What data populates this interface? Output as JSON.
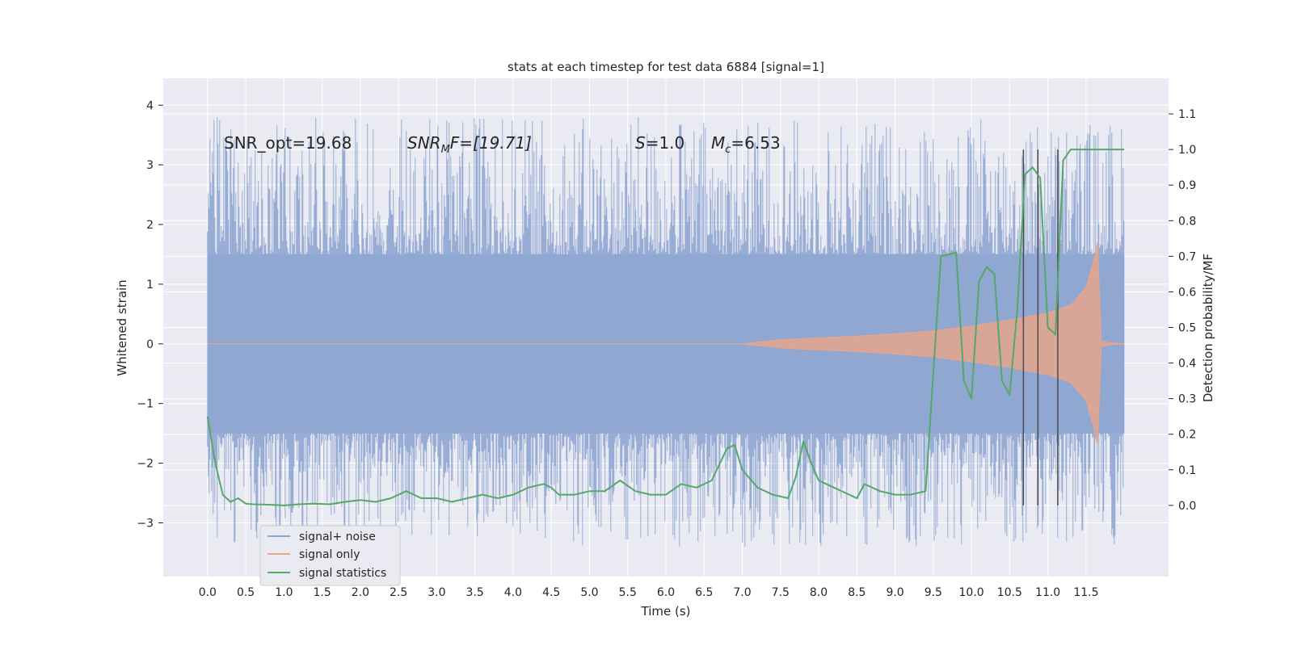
{
  "chart_data": {
    "type": "line",
    "title": "stats at each timestep for test data 6884 [signal=1]",
    "xlabel": "Time (s)",
    "ylabel": "Whitened strain",
    "ylabel_right": "Detection probability/MF",
    "xlim": [
      -0.58,
      12.58
    ],
    "ylim": [
      -3.9,
      4.45
    ],
    "ylim_right": [
      -0.2,
      1.2
    ],
    "x_ticks": [
      "0.0",
      "0.5",
      "1.0",
      "1.5",
      "2.0",
      "2.5",
      "3.0",
      "3.5",
      "4.0",
      "4.5",
      "5.0",
      "5.5",
      "6.0",
      "6.5",
      "7.0",
      "7.5",
      "8.0",
      "8.5",
      "9.0",
      "9.5",
      "10.0",
      "10.5",
      "11.0",
      "11.5"
    ],
    "y_ticks": [
      "−3",
      "−2",
      "−1",
      "0",
      "1",
      "2",
      "3",
      "4"
    ],
    "y_ticks_right": [
      "0.0",
      "0.1",
      "0.2",
      "0.3",
      "0.4",
      "0.5",
      "0.6",
      "0.7",
      "0.8",
      "0.9",
      "1.0",
      "1.1"
    ],
    "annotations": {
      "snr_opt": "SNR_opt=19.68",
      "snr_mf_main": "SNR",
      "snr_mf_sub": "M",
      "snr_mf_rest": "F=[19.71]",
      "s_main": "S",
      "s_rest": "=1.0",
      "mc_main": "M",
      "mc_sub": "c",
      "mc_rest": "=6.53"
    },
    "legend": {
      "position": "lower-left",
      "entries": [
        {
          "label": "signal+ noise",
          "color": "#8fa6d1"
        },
        {
          "label": "signal only",
          "color": "#e6a58c"
        },
        {
          "label": "signal statistics",
          "color": "#55a868"
        }
      ]
    },
    "series": [
      {
        "name": "signal+ noise",
        "color": "#8fa6d1",
        "time_range": [
          0.0,
          12.0
        ],
        "typical_band": [
          -1.5,
          1.5
        ],
        "peak_envelope": [
          -3.6,
          4.1
        ]
      },
      {
        "name": "signal only",
        "color": "#e6a58c",
        "envelope_x": [
          0.0,
          7.0,
          7.5,
          8.0,
          8.5,
          9.0,
          9.5,
          10.0,
          10.5,
          11.0,
          11.3,
          11.5,
          11.6,
          11.65,
          11.7,
          11.8,
          12.0
        ],
        "envelope_y": [
          0.0,
          0.0,
          0.07,
          0.1,
          0.13,
          0.17,
          0.22,
          0.3,
          0.4,
          0.52,
          0.65,
          0.95,
          1.4,
          1.7,
          0.05,
          0.02,
          0.0
        ]
      },
      {
        "name": "signal statistics",
        "color": "#55a868",
        "x": [
          0.0,
          0.1,
          0.2,
          0.3,
          0.4,
          0.5,
          0.6,
          0.8,
          1.0,
          1.2,
          1.4,
          1.6,
          1.8,
          2.0,
          2.2,
          2.4,
          2.6,
          2.7,
          2.8,
          3.0,
          3.2,
          3.4,
          3.6,
          3.8,
          4.0,
          4.2,
          4.4,
          4.5,
          4.6,
          4.8,
          5.0,
          5.2,
          5.4,
          5.6,
          5.8,
          6.0,
          6.2,
          6.4,
          6.6,
          6.8,
          6.9,
          7.0,
          7.2,
          7.4,
          7.6,
          7.7,
          7.8,
          7.9,
          8.0,
          8.2,
          8.4,
          8.5,
          8.6,
          8.8,
          9.0,
          9.2,
          9.4,
          9.6,
          9.8,
          9.9,
          10.0,
          10.1,
          10.2,
          10.3,
          10.4,
          10.5,
          10.6,
          10.7,
          10.8,
          10.9,
          11.0,
          11.1,
          11.2,
          11.3,
          11.4,
          11.5,
          11.6,
          11.7,
          11.8,
          11.9,
          12.0
        ],
        "y": [
          0.25,
          0.12,
          0.03,
          0.01,
          0.02,
          0.005,
          0.003,
          0.002,
          0.0,
          0.003,
          0.005,
          0.003,
          0.01,
          0.015,
          0.01,
          0.02,
          0.04,
          0.03,
          0.02,
          0.02,
          0.01,
          0.02,
          0.03,
          0.02,
          0.03,
          0.05,
          0.06,
          0.05,
          0.03,
          0.03,
          0.04,
          0.04,
          0.07,
          0.04,
          0.03,
          0.03,
          0.06,
          0.05,
          0.07,
          0.16,
          0.17,
          0.1,
          0.05,
          0.03,
          0.02,
          0.08,
          0.18,
          0.12,
          0.07,
          0.05,
          0.03,
          0.02,
          0.06,
          0.04,
          0.03,
          0.03,
          0.04,
          0.7,
          0.71,
          0.35,
          0.3,
          0.63,
          0.67,
          0.65,
          0.35,
          0.31,
          0.55,
          0.93,
          0.95,
          0.92,
          0.5,
          0.48,
          0.97,
          1.0,
          1.0,
          1.0,
          1.0,
          1.0,
          1.0,
          1.0,
          1.0
        ]
      }
    ],
    "vertical_markers_x": [
      10.68,
      10.87,
      11.13
    ]
  }
}
